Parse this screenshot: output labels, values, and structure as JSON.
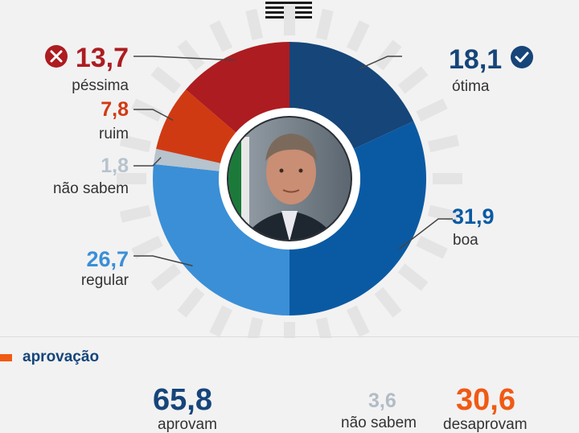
{
  "colors": {
    "otima": "#164579",
    "boa": "#0a5aa3",
    "regular": "#3b8fd6",
    "nao_sabem": "#b7c3cd",
    "ruim": "#d03a12",
    "pessima": "#ad1c20",
    "approve": "#16457a",
    "disapprove": "#f05a14",
    "neutral": "#b2bcc6",
    "accent_bar": "#f05a14"
  },
  "chart_data": {
    "type": "pie",
    "slices": [
      {
        "label": "ótima",
        "value": 18.1,
        "value_text": "18,1",
        "color": "#164579"
      },
      {
        "label": "boa",
        "value": 31.9,
        "value_text": "31,9",
        "color": "#0a5aa3"
      },
      {
        "label": "regular",
        "value": 26.7,
        "value_text": "26,7",
        "color": "#3b8fd6"
      },
      {
        "label": "não sabem",
        "value": 1.8,
        "value_text": "1,8",
        "color": "#b7c3cd"
      },
      {
        "label": "ruim",
        "value": 7.8,
        "value_text": "7,8",
        "color": "#d03a12"
      },
      {
        "label": "péssima",
        "value": 13.7,
        "value_text": "13,7",
        "color": "#ad1c20"
      }
    ],
    "center_image": "portrait-photo",
    "approval": {
      "title": "aprovação",
      "aprovam": {
        "label": "aprovam",
        "value": 65.8,
        "value_text": "65,8"
      },
      "nao_sabem": {
        "label": "não sabem",
        "value": 3.6,
        "value_text": "3,6"
      },
      "desaprovam": {
        "label": "desaprovam",
        "value": 30.6,
        "value_text": "30,6"
      }
    }
  },
  "icons": {
    "otima": "check-circle-icon",
    "pessima": "x-circle-icon",
    "menu": "hamburger-menu-icon"
  }
}
